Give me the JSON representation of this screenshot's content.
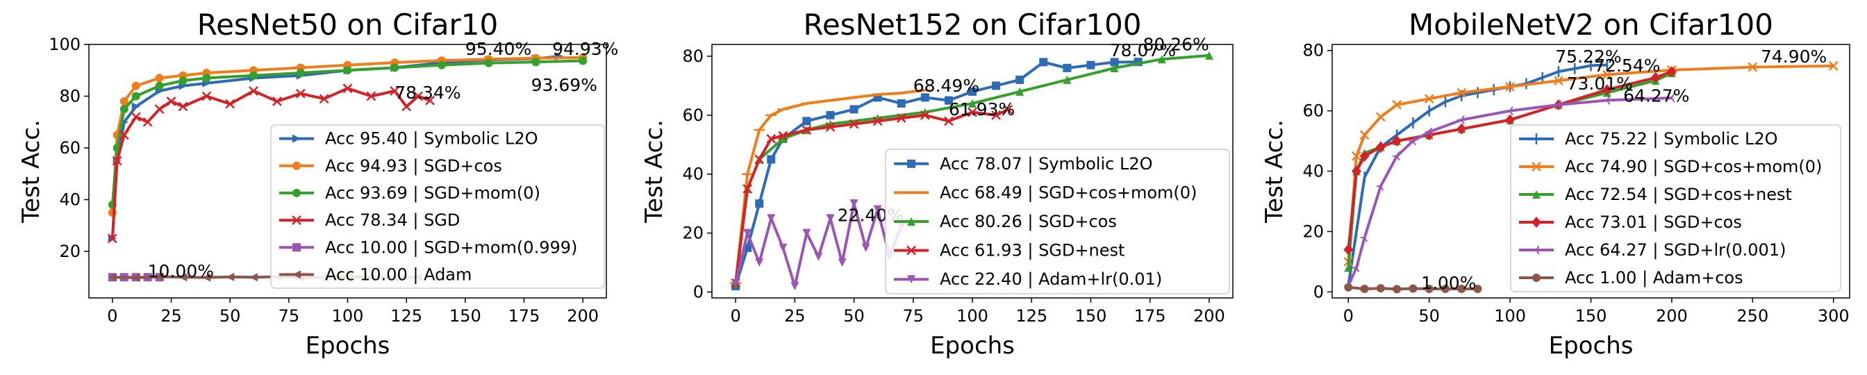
{
  "chart_data": [
    {
      "type": "line",
      "title": "ResNet50 on Cifar10",
      "xlabel": "Epochs",
      "ylabel": "Test Acc.",
      "xlim": [
        -10,
        210
      ],
      "ylim": [
        2,
        100
      ],
      "xticks": [
        0,
        25,
        50,
        75,
        100,
        125,
        150,
        175,
        200
      ],
      "yticks": [
        20,
        40,
        60,
        80,
        100
      ],
      "legend_position": "lower-right",
      "series": [
        {
          "name": "Acc 95.40 | Symbolic L2O",
          "color": "#2e6bb4",
          "marker": "triangle-right",
          "x": [
            0,
            2,
            5,
            10,
            20,
            30,
            40,
            60,
            80,
            100,
            120,
            140,
            160,
            180,
            190
          ],
          "y": [
            25,
            55,
            70,
            76,
            82,
            84,
            85,
            87,
            88,
            90,
            91,
            93,
            94,
            94.5,
            95.4
          ]
        },
        {
          "name": "Acc 94.93 | SGD+cos",
          "color": "#f07d1c",
          "marker": "circle",
          "x": [
            0,
            2,
            5,
            10,
            20,
            30,
            40,
            60,
            80,
            100,
            120,
            140,
            160,
            180,
            200
          ],
          "y": [
            35,
            65,
            78,
            84,
            87,
            88,
            89,
            90,
            91,
            92,
            93,
            93.8,
            94.3,
            94.7,
            94.93
          ]
        },
        {
          "name": "Acc 93.69 | SGD+mom(0)",
          "color": "#36a02c",
          "marker": "circle",
          "x": [
            0,
            2,
            5,
            10,
            20,
            30,
            40,
            60,
            80,
            100,
            120,
            140,
            160,
            180,
            200
          ],
          "y": [
            38,
            60,
            75,
            80,
            84,
            86,
            87,
            88,
            89,
            90,
            91,
            92,
            92.8,
            93.2,
            93.69
          ]
        },
        {
          "name": "Acc 78.34 | SGD",
          "color": "#d32228",
          "marker": "x",
          "x": [
            0,
            2,
            5,
            10,
            15,
            20,
            25,
            30,
            40,
            50,
            60,
            70,
            80,
            90,
            100,
            110,
            120,
            125,
            130,
            135
          ],
          "y": [
            25,
            55,
            65,
            72,
            70,
            75,
            78,
            76,
            80,
            77,
            82,
            78,
            81,
            79,
            83,
            80,
            82,
            76,
            80,
            78.34
          ]
        },
        {
          "name": "Acc 10.00 | SGD+mom(0.999)",
          "color": "#9b55b5",
          "marker": "square",
          "x": [
            0,
            5,
            10,
            15,
            20
          ],
          "y": [
            10,
            10,
            10,
            10,
            10
          ]
        },
        {
          "name": "Acc 10.00 | Adam",
          "color": "#8c564b",
          "marker": "triangle-left",
          "x": [
            0,
            10,
            20,
            30,
            40,
            50,
            60,
            70,
            80,
            90,
            100,
            110,
            120,
            130
          ],
          "y": [
            10,
            9.8,
            10.2,
            10,
            9.9,
            10.1,
            10,
            10.2,
            9.8,
            10,
            10.1,
            10,
            9.9,
            10
          ]
        }
      ],
      "annotations": [
        {
          "text": "95.40%",
          "x": 150,
          "y": 96
        },
        {
          "text": "94.93%",
          "x": 187,
          "y": 96
        },
        {
          "text": "93.69%",
          "x": 178,
          "y": 82
        },
        {
          "text": "78.34%",
          "x": 120,
          "y": 79
        },
        {
          "text": "10.00%",
          "x": 15,
          "y": 10
        }
      ]
    },
    {
      "type": "line",
      "title": "ResNet152 on Cifar100",
      "xlabel": "Epochs",
      "ylabel": "Test Acc.",
      "xlim": [
        -10,
        210
      ],
      "ylim": [
        -2,
        84
      ],
      "xticks": [
        0,
        25,
        50,
        75,
        100,
        125,
        150,
        175,
        200
      ],
      "yticks": [
        0,
        20,
        40,
        60,
        80
      ],
      "legend_position": "lower-right",
      "series": [
        {
          "name": "Acc 78.07 | Symbolic L2O",
          "color": "#2e6bb4",
          "marker": "square",
          "x": [
            0,
            5,
            10,
            15,
            20,
            30,
            40,
            50,
            60,
            70,
            80,
            90,
            100,
            110,
            120,
            130,
            140,
            150,
            160,
            170
          ],
          "y": [
            2,
            15,
            30,
            45,
            52,
            58,
            60,
            62,
            66,
            64,
            66,
            65,
            68,
            70,
            72,
            78,
            76,
            77,
            78,
            78.07
          ]
        },
        {
          "name": "Acc 68.49 | SGD+cos+mom(0)",
          "color": "#f07d1c",
          "marker": "hline",
          "x": [
            0,
            5,
            10,
            15,
            20,
            30,
            40,
            50,
            60,
            70,
            80
          ],
          "y": [
            3,
            40,
            55,
            60,
            62,
            64,
            65,
            66,
            67,
            67.5,
            68.49
          ]
        },
        {
          "name": "Acc 80.26 | SGD+cos",
          "color": "#36a02c",
          "marker": "triangle-up",
          "x": [
            0,
            5,
            10,
            20,
            30,
            40,
            60,
            80,
            100,
            120,
            140,
            160,
            180,
            200
          ],
          "y": [
            3,
            35,
            45,
            52,
            55,
            57,
            59,
            61,
            64,
            68,
            72,
            76,
            79,
            80.26
          ]
        },
        {
          "name": "Acc 61.93 | SGD+nest",
          "color": "#d32228",
          "marker": "x",
          "x": [
            0,
            5,
            10,
            15,
            20,
            30,
            40,
            50,
            60,
            70,
            80,
            90,
            100,
            110,
            115
          ],
          "y": [
            3,
            35,
            45,
            52,
            53,
            55,
            56,
            57,
            58,
            59,
            60,
            58,
            61,
            60,
            61.93
          ]
        },
        {
          "name": "Acc 22.40 | Adam+lr(0.01)",
          "color": "#9b55b5",
          "marker": "triangle-down",
          "x": [
            0,
            5,
            10,
            15,
            20,
            25,
            30,
            35,
            40,
            45,
            50,
            55,
            60,
            65,
            70
          ],
          "y": [
            3,
            20,
            10,
            25,
            15,
            2,
            20,
            12,
            25,
            10,
            30,
            15,
            28,
            12,
            22.4
          ]
        }
      ],
      "annotations": [
        {
          "text": "78.07%",
          "x": 158,
          "y": 80
        },
        {
          "text": "80.26%",
          "x": 172,
          "y": 82
        },
        {
          "text": "68.49%",
          "x": 75,
          "y": 68
        },
        {
          "text": "61.93%",
          "x": 90,
          "y": 60
        },
        {
          "text": "22.40%",
          "x": 43,
          "y": 24
        }
      ]
    },
    {
      "type": "line",
      "title": "MobileNetV2 on Cifar100",
      "xlabel": "Epochs",
      "ylabel": "Test Acc.",
      "xlim": [
        -10,
        310
      ],
      "ylim": [
        -2,
        82
      ],
      "xticks": [
        0,
        50,
        100,
        150,
        200,
        250,
        300
      ],
      "yticks": [
        0,
        20,
        40,
        60,
        80
      ],
      "legend_position": "lower-right",
      "series": [
        {
          "name": "Acc 75.22 | Symbolic L2O",
          "color": "#2e6bb4",
          "marker": "vline",
          "x": [
            0,
            5,
            10,
            20,
            30,
            40,
            50,
            60,
            70,
            80,
            90,
            100,
            110,
            120,
            130,
            140,
            150,
            160
          ],
          "y": [
            2,
            20,
            38,
            48,
            52,
            56,
            60,
            63,
            65,
            66,
            67,
            68,
            69,
            71,
            73,
            74,
            75,
            75.22
          ]
        },
        {
          "name": "Acc 74.90 | SGD+cos+mom(0)",
          "color": "#f07d1c",
          "marker": "x",
          "x": [
            0,
            5,
            10,
            20,
            30,
            50,
            70,
            100,
            130,
            160,
            200,
            250,
            300
          ],
          "y": [
            10,
            45,
            52,
            58,
            62,
            64,
            66,
            68,
            70,
            72,
            73.5,
            74.5,
            74.9
          ]
        },
        {
          "name": "Acc 72.54 | SGD+cos+nest",
          "color": "#36a02c",
          "marker": "triangle-up",
          "x": [
            0,
            5,
            10,
            20,
            30,
            50,
            70,
            100,
            130,
            160,
            190,
            200
          ],
          "y": [
            8,
            40,
            46,
            48,
            50,
            52,
            54,
            57,
            62,
            66,
            70,
            72.54
          ]
        },
        {
          "name": "Acc 73.01 | SGD+cos",
          "color": "#d32228",
          "marker": "diamond",
          "x": [
            0,
            5,
            10,
            20,
            30,
            50,
            70,
            100,
            130,
            160,
            190,
            200
          ],
          "y": [
            14,
            40,
            45,
            48,
            50,
            52,
            54,
            57,
            62,
            67,
            71,
            73.01
          ]
        },
        {
          "name": "Acc 64.27 | SGD+lr(0.001)",
          "color": "#9b55b5",
          "marker": "tri-left",
          "x": [
            0,
            5,
            10,
            20,
            30,
            40,
            50,
            70,
            100,
            130,
            160,
            200
          ],
          "y": [
            2,
            8,
            18,
            35,
            45,
            50,
            53,
            57,
            60,
            62,
            63.5,
            64.27
          ]
        },
        {
          "name": "Acc 1.00 | Adam+cos",
          "color": "#8c564b",
          "marker": "circle",
          "x": [
            0,
            10,
            20,
            30,
            40,
            50,
            60,
            70,
            80
          ],
          "y": [
            1.5,
            1,
            1.2,
            0.9,
            1.1,
            1,
            1,
            1,
            1
          ]
        }
      ],
      "annotations": [
        {
          "text": "75.22%",
          "x": 128,
          "y": 76
        },
        {
          "text": "72.54%",
          "x": 152,
          "y": 73
        },
        {
          "text": "74.90%",
          "x": 255,
          "y": 76
        },
        {
          "text": "73.01%",
          "x": 135,
          "y": 67
        },
        {
          "text": "64.27%",
          "x": 170,
          "y": 63
        },
        {
          "text": "1.00%",
          "x": 45,
          "y": 1
        }
      ]
    }
  ]
}
